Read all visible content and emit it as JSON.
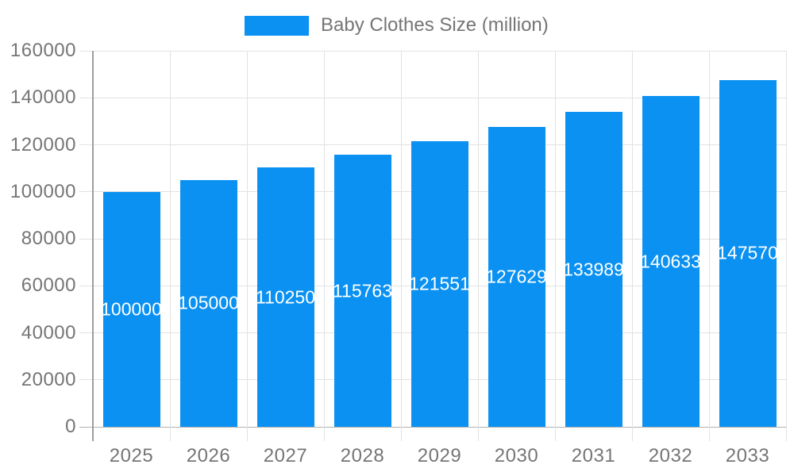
{
  "chart_data": {
    "type": "bar",
    "title": "Baby Clothes Size (million)",
    "categories": [
      "2025",
      "2026",
      "2027",
      "2028",
      "2029",
      "2030",
      "2031",
      "2032",
      "2033"
    ],
    "values": [
      100000,
      105000,
      110250,
      115763,
      121551,
      127629,
      133989,
      140633,
      147570
    ],
    "bar_labels": [
      "100000",
      "105000",
      "110250",
      "115763",
      "121551",
      "127629",
      "133989",
      "140633",
      "147570"
    ],
    "xlabel": "",
    "ylabel": "",
    "ylim": [
      0,
      160000
    ],
    "ytick_step": 20000,
    "ytick_labels": [
      "0",
      "20000",
      "40000",
      "60000",
      "80000",
      "100000",
      "120000",
      "140000",
      "160000"
    ],
    "grid": true,
    "legend_position": "top",
    "colors": {
      "bar": "#0a91f2",
      "annotation_text": "#ffffff",
      "axis_label": "#757575",
      "legend_text": "#757575",
      "grid_line": "#e2e2e2",
      "axis_line": "#9e9e9e",
      "baseline": "#b0b0b0",
      "background": "#ffffff"
    }
  }
}
